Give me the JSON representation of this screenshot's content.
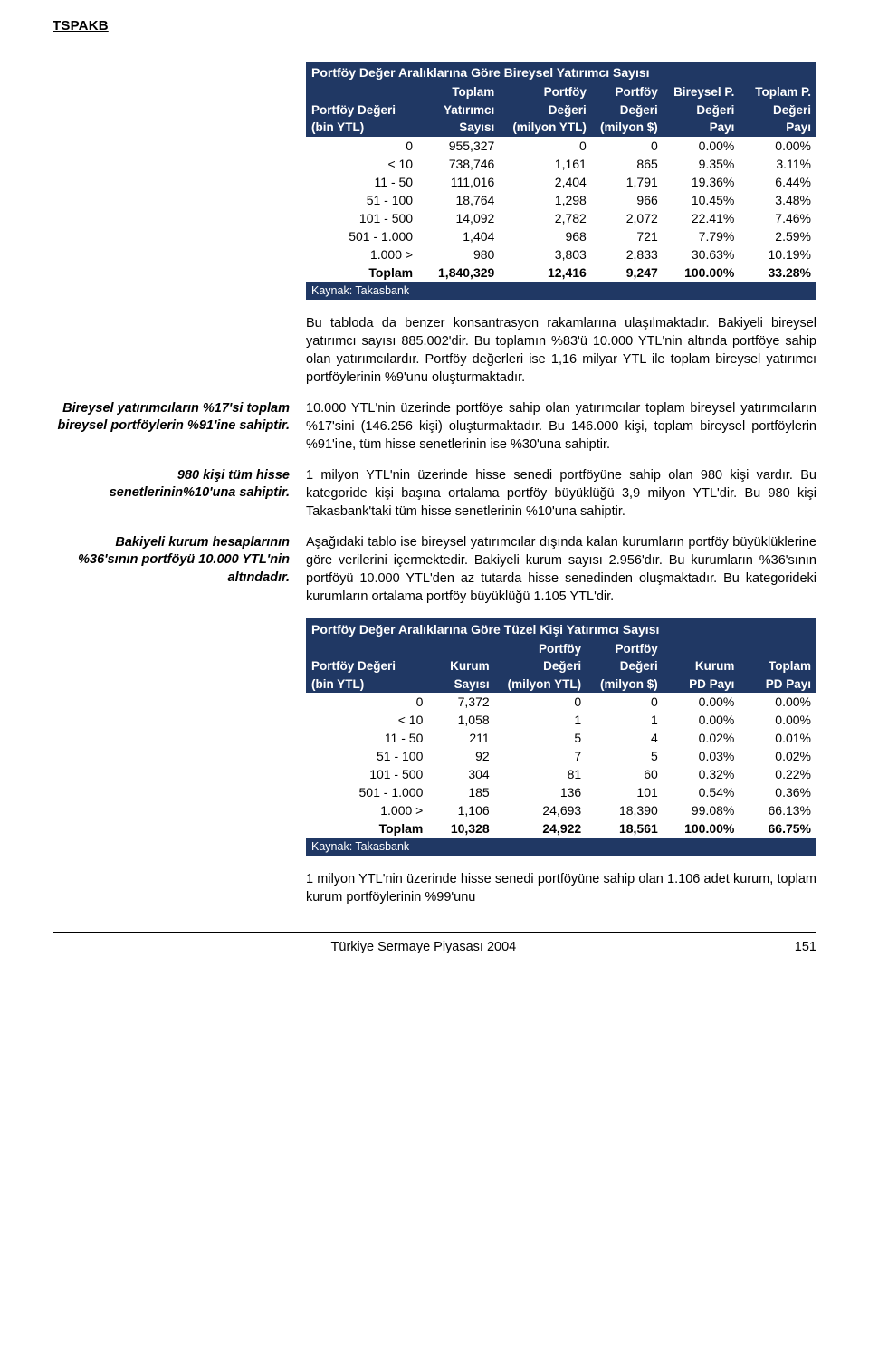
{
  "header": {
    "org": "TSPAKB"
  },
  "table1": {
    "title": "Portföy Değer Aralıklarına Göre Bireysel Yatırımcı Sayısı",
    "columns": [
      {
        "l1": "",
        "l2": "Portföy Değeri",
        "l3": "(bin YTL)"
      },
      {
        "l1": "Toplam",
        "l2": "Yatırımcı",
        "l3": "Sayısı"
      },
      {
        "l1": "Portföy",
        "l2": "Değeri",
        "l3": "(milyon YTL)"
      },
      {
        "l1": "Portföy",
        "l2": "Değeri",
        "l3": "(milyon $)"
      },
      {
        "l1": "Bireysel P.",
        "l2": "Değeri",
        "l3": "Payı"
      },
      {
        "l1": "Toplam P.",
        "l2": "Değeri",
        "l3": "Payı"
      }
    ],
    "rows": [
      [
        "0",
        "955,327",
        "0",
        "0",
        "0.00%",
        "0.00%"
      ],
      [
        "< 10",
        "738,746",
        "1,161",
        "865",
        "9.35%",
        "3.11%"
      ],
      [
        "11 - 50",
        "111,016",
        "2,404",
        "1,791",
        "19.36%",
        "6.44%"
      ],
      [
        "51 - 100",
        "18,764",
        "1,298",
        "966",
        "10.45%",
        "3.48%"
      ],
      [
        "101 - 500",
        "14,092",
        "2,782",
        "2,072",
        "22.41%",
        "7.46%"
      ],
      [
        "501 - 1.000",
        "1,404",
        "968",
        "721",
        "7.79%",
        "2.59%"
      ],
      [
        "1.000 >",
        "980",
        "3,803",
        "2,833",
        "30.63%",
        "10.19%"
      ]
    ],
    "total": [
      "Toplam",
      "1,840,329",
      "12,416",
      "9,247",
      "100.00%",
      "33.28%"
    ],
    "source": "Kaynak: Takasbank"
  },
  "para_after_t1": "Bu tabloda da benzer konsantrasyon rakamlarına ulaşılmaktadır. Bakiyeli bireysel yatırımcı sayısı 885.002'dir. Bu toplamın %83'ü 10.000 YTL'nin altında portföye sahip olan yatırımcılardır. Portföy değerleri ise 1,16 milyar YTL ile toplam bireysel yatırımcı portföylerinin %9'unu oluşturmaktadır.",
  "paras": [
    {
      "side": "Bireysel yatırımcıların %17'si toplam bireysel portföylerin %91'ine sahiptir.",
      "body": "10.000 YTL'nin üzerinde portföye sahip olan yatırımcılar toplam bireysel yatırımcıların %17'sini (146.256 kişi) oluşturmaktadır. Bu 146.000 kişi, toplam bireysel portföylerin %91'ine, tüm hisse senetlerinin ise %30'una sahiptir."
    },
    {
      "side": "980 kişi tüm hisse senetlerinin%10'una sahiptir.",
      "body": "1 milyon YTL'nin üzerinde hisse senedi portföyüne sahip olan 980 kişi vardır. Bu kategoride kişi başına ortalama portföy büyüklüğü 3,9 milyon YTL'dir. Bu 980 kişi Takasbank'taki tüm hisse senetlerinin %10'una sahiptir."
    },
    {
      "side": "Bakiyeli kurum hesaplarının %36'sının portföyü 10.000 YTL'nin altındadır.",
      "body": "Aşağıdaki tablo ise bireysel yatırımcılar dışında kalan kurumların portföy büyüklüklerine göre verilerini içermektedir. Bakiyeli kurum sayısı 2.956'dır. Bu kurumların %36'sının portföyü 10.000 YTL'den az tutarda hisse senedinden oluşmaktadır. Bu kategorideki kurumların ortalama portföy büyüklüğü 1.105 YTL'dir."
    }
  ],
  "table2": {
    "title": "Portföy Değer Aralıklarına Göre Tüzel Kişi Yatırımcı Sayısı",
    "columns": [
      {
        "l1": "",
        "l2": "Portföy Değeri",
        "l3": "(bin YTL)"
      },
      {
        "l1": "",
        "l2": "Kurum",
        "l3": "Sayısı"
      },
      {
        "l1": "Portföy",
        "l2": "Değeri",
        "l3": "(milyon YTL)"
      },
      {
        "l1": "Portföy",
        "l2": "Değeri",
        "l3": "(milyon $)"
      },
      {
        "l1": "",
        "l2": "Kurum",
        "l3": "PD Payı"
      },
      {
        "l1": "",
        "l2": "Toplam",
        "l3": "PD Payı"
      }
    ],
    "rows": [
      [
        "0",
        "7,372",
        "0",
        "0",
        "0.00%",
        "0.00%"
      ],
      [
        "< 10",
        "1,058",
        "1",
        "1",
        "0.00%",
        "0.00%"
      ],
      [
        "11 - 50",
        "211",
        "5",
        "4",
        "0.02%",
        "0.01%"
      ],
      [
        "51 - 100",
        "92",
        "7",
        "5",
        "0.03%",
        "0.02%"
      ],
      [
        "101 - 500",
        "304",
        "81",
        "60",
        "0.32%",
        "0.22%"
      ],
      [
        "501 - 1.000",
        "185",
        "136",
        "101",
        "0.54%",
        "0.36%"
      ],
      [
        "1.000 >",
        "1,106",
        "24,693",
        "18,390",
        "99.08%",
        "66.13%"
      ]
    ],
    "total": [
      "Toplam",
      "10,328",
      "24,922",
      "18,561",
      "100.00%",
      "66.75%"
    ],
    "source": "Kaynak: Takasbank"
  },
  "para_after_t2": "1 milyon YTL'nin üzerinde hisse senedi portföyüne sahip olan 1.106 adet kurum, toplam kurum portföylerinin %99'unu",
  "footer": {
    "title": "Türkiye Sermaye Piyasası 2004",
    "page": "151"
  },
  "style": {
    "header_bg": "#203864",
    "header_fg": "#ffffff",
    "body_fg": "#000000",
    "font_family": "Verdana",
    "col_widths_t1": [
      "22%",
      "16%",
      "18%",
      "14%",
      "15%",
      "15%"
    ],
    "col_widths_t2": [
      "24%",
      "13%",
      "18%",
      "15%",
      "15%",
      "15%"
    ]
  }
}
